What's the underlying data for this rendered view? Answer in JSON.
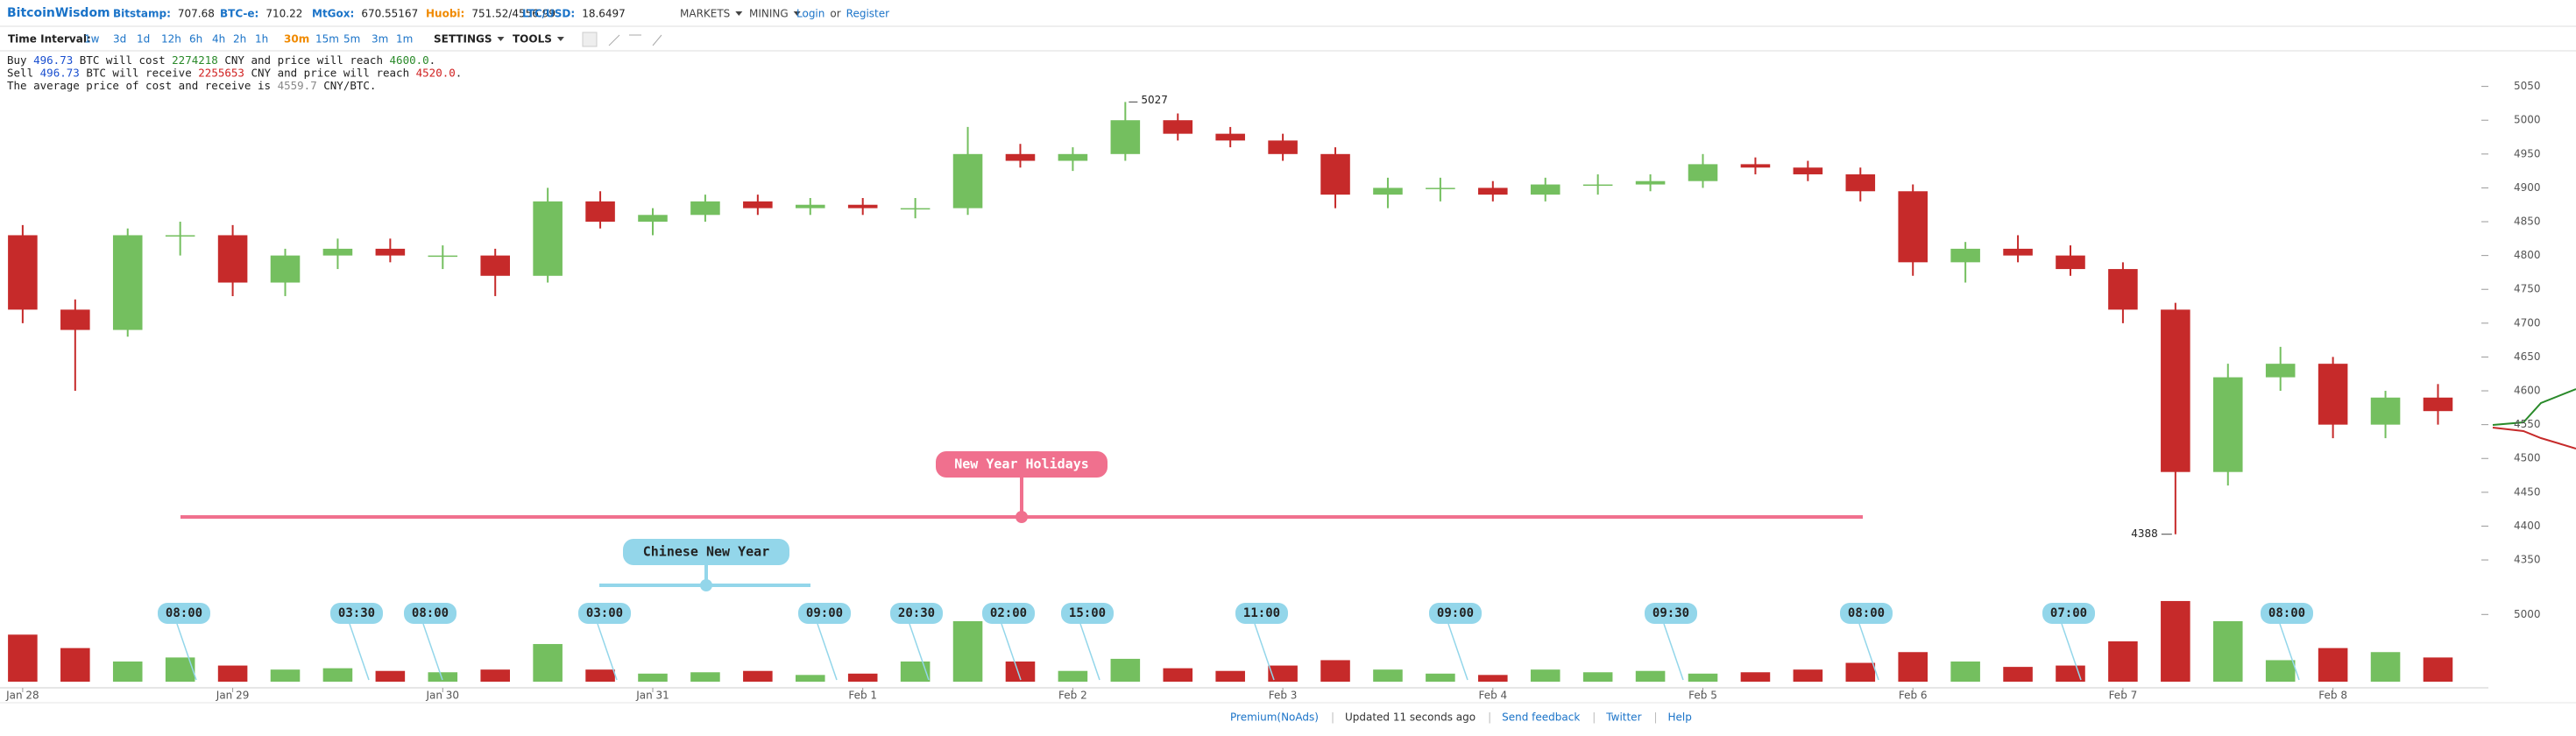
{
  "header": {
    "logo": "BitcoinWisdom",
    "tickers": [
      {
        "name": "Bitstamp:",
        "value": "707.68",
        "color": "#1a73c8"
      },
      {
        "name": "BTC-e:",
        "value": "710.22",
        "color": "#1a73c8"
      },
      {
        "name": "MtGox:",
        "value": "670.55167",
        "color": "#1a73c8"
      },
      {
        "name": "Huobi:",
        "value": "751.52/4556.99",
        "color": "#f08a00"
      },
      {
        "name": "LTC/USD:",
        "value": "18.6497",
        "color": "#1a73c8"
      }
    ],
    "menus": [
      "MARKETS",
      "MINING"
    ],
    "login": "Login",
    "or": "or",
    "register": "Register"
  },
  "toolbar": {
    "label": "Time Interval:",
    "intervals": [
      "1w",
      "3d",
      "1d",
      "12h",
      "6h",
      "4h",
      "2h",
      "1h",
      "30m",
      "15m",
      "5m",
      "3m",
      "1m"
    ],
    "active_interval": "30m",
    "menus": [
      "SETTINGS",
      "TOOLS"
    ]
  },
  "info": [
    [
      {
        "text": "Buy ",
        "color": "#222"
      },
      {
        "text": "496.73",
        "color": "#1a4fd0"
      },
      {
        "text": " BTC will cost ",
        "color": "#222"
      },
      {
        "text": "2274218",
        "color": "#2a8a2a"
      },
      {
        "text": " CNY and price will reach ",
        "color": "#222"
      },
      {
        "text": "4600.0",
        "color": "#2a8a2a"
      },
      {
        "text": ".",
        "color": "#222"
      }
    ],
    [
      {
        "text": "Sell ",
        "color": "#222"
      },
      {
        "text": "496.73",
        "color": "#1a4fd0"
      },
      {
        "text": " BTC will receive ",
        "color": "#222"
      },
      {
        "text": "2255653",
        "color": "#d02020"
      },
      {
        "text": " CNY and price will reach ",
        "color": "#222"
      },
      {
        "text": "4520.0",
        "color": "#d02020"
      },
      {
        "text": ".",
        "color": "#222"
      }
    ],
    [
      {
        "text": "The average price of cost and receive is ",
        "color": "#222"
      },
      {
        "text": "4559.7",
        "color": "#888"
      },
      {
        "text": " CNY/BTC.",
        "color": "#222"
      }
    ]
  ],
  "chart_data": {
    "type": "candlestick",
    "x": [
      0,
      0.25,
      0.5,
      0.75,
      1,
      1.25,
      1.5,
      1.75,
      2,
      2.25,
      2.5,
      2.75,
      3,
      3.25,
      3.5,
      3.75,
      4,
      4.25,
      4.5,
      4.75,
      5,
      5.25,
      5.5,
      5.75,
      6,
      6.25,
      6.5,
      6.75,
      7,
      7.25,
      7.5,
      7.75,
      8,
      8.25,
      8.5,
      8.75,
      9,
      9.25,
      9.5,
      9.75,
      10,
      10.25,
      10.5,
      10.75,
      11,
      11.25,
      11.5
    ],
    "open": [
      4830,
      4720,
      4690,
      4830,
      4830,
      4760,
      4800,
      4810,
      4800,
      4800,
      4770,
      4880,
      4850,
      4860,
      4880,
      4870,
      4875,
      4870,
      4870,
      4950,
      4940,
      4950,
      5000,
      4980,
      4970,
      4950,
      4890,
      4900,
      4900,
      4890,
      4905,
      4905,
      4910,
      4935,
      4930,
      4920,
      4895,
      4790,
      4810,
      4800,
      4780,
      4720,
      4480,
      4620,
      4640,
      4550,
      4590
    ],
    "high": [
      4845,
      4735,
      4840,
      4850,
      4845,
      4810,
      4825,
      4825,
      4815,
      4810,
      4900,
      4895,
      4870,
      4890,
      4890,
      4885,
      4885,
      4885,
      4990,
      4965,
      4960,
      5027,
      5010,
      4990,
      4980,
      4960,
      4915,
      4915,
      4910,
      4915,
      4920,
      4920,
      4950,
      4945,
      4940,
      4930,
      4905,
      4820,
      4830,
      4815,
      4790,
      4730,
      4640,
      4665,
      4650,
      4600,
      4610
    ],
    "low": [
      4700,
      4600,
      4680,
      4800,
      4740,
      4740,
      4780,
      4790,
      4780,
      4740,
      4760,
      4840,
      4830,
      4850,
      4860,
      4860,
      4860,
      4855,
      4860,
      4930,
      4925,
      4940,
      4970,
      4960,
      4940,
      4870,
      4870,
      4880,
      4880,
      4880,
      4890,
      4895,
      4900,
      4920,
      4910,
      4880,
      4770,
      4760,
      4790,
      4770,
      4700,
      4388,
      4460,
      4600,
      4530,
      4530,
      4550
    ],
    "close": [
      4720,
      4690,
      4830,
      4830,
      4760,
      4800,
      4810,
      4800,
      4800,
      4770,
      4880,
      4850,
      4860,
      4880,
      4870,
      4875,
      4870,
      4870,
      4950,
      4940,
      4950,
      5000,
      4980,
      4970,
      4950,
      4890,
      4900,
      4900,
      4890,
      4905,
      4905,
      4910,
      4935,
      4930,
      4920,
      4895,
      4790,
      4810,
      4800,
      4780,
      4720,
      4480,
      4620,
      4640,
      4550,
      4590,
      4570
    ],
    "up_color": "#74bf5f",
    "down_color": "#c62a2a",
    "xlim": [
      -0.108,
      11.74
    ],
    "xticks": [
      {
        "value": 0,
        "label": "Jan 28"
      },
      {
        "value": 1,
        "label": "Jan 29"
      },
      {
        "value": 2,
        "label": "Jan 30"
      },
      {
        "value": 3,
        "label": "Jan 31"
      },
      {
        "value": 4,
        "label": "Feb 1"
      },
      {
        "value": 5,
        "label": "Feb 2"
      },
      {
        "value": 6,
        "label": "Feb 3"
      },
      {
        "value": 7,
        "label": "Feb 4"
      },
      {
        "value": 8,
        "label": "Feb 5"
      },
      {
        "value": 9,
        "label": "Feb 6"
      },
      {
        "value": 10,
        "label": "Feb 7"
      },
      {
        "value": 11,
        "label": "Feb 8"
      }
    ],
    "ylim": [
      4330,
      5100
    ],
    "yticks": [
      4350,
      4400,
      4450,
      4500,
      4550,
      4600,
      4650,
      4700,
      4750,
      4800,
      4850,
      4900,
      4950,
      5000,
      5050
    ],
    "volume": {
      "values": [
        3500,
        2500,
        1500,
        1800,
        1200,
        900,
        1000,
        800,
        700,
        900,
        2800,
        900,
        600,
        700,
        800,
        500,
        600,
        1500,
        4500,
        1500,
        800,
        1700,
        1000,
        800,
        1200,
        1600,
        900,
        600,
        500,
        900,
        700,
        800,
        600,
        700,
        900,
        1400,
        2200,
        1500,
        1100,
        1200,
        3000,
        6000,
        4500,
        1600,
        2500,
        2200,
        1800
      ],
      "ylim": [
        0,
        7300
      ],
      "yticks": [
        5000
      ]
    }
  },
  "events": [
    {
      "label": "New Year Holidays",
      "color": "#f0708e"
    },
    {
      "label": "Chinese New Year",
      "color": "#93d6ea"
    }
  ],
  "time_markers": [
    "08:00",
    "03:30",
    "08:00",
    "03:00",
    "09:00",
    "20:30",
    "02:00",
    "15:00",
    "11:00",
    "09:00",
    "09:30",
    "08:00",
    "07:00",
    "08:00"
  ],
  "footer": {
    "links": [
      "Premium(NoAds)",
      "Updated 11 seconds ago",
      "Send feedback",
      "Twitter",
      "Help"
    ]
  }
}
